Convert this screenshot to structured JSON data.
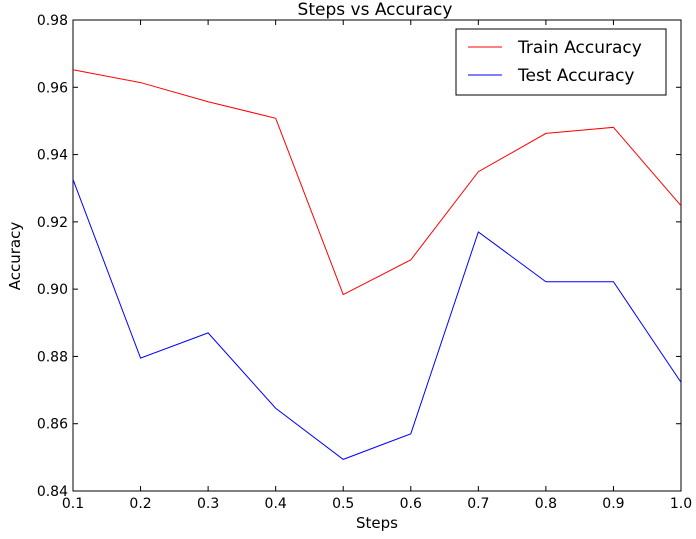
{
  "chart_data": {
    "type": "line",
    "title": "Steps vs Accuracy",
    "xlabel": "Steps",
    "ylabel": "Accuracy",
    "xlim": [
      0.1,
      1.0
    ],
    "ylim": [
      0.84,
      0.98
    ],
    "x": [
      0.1,
      0.2,
      0.3,
      0.4,
      0.5,
      0.6,
      0.7,
      0.8,
      0.9,
      1.0
    ],
    "x_ticks": [
      "0.1",
      "0.2",
      "0.3",
      "0.4",
      "0.5",
      "0.6",
      "0.7",
      "0.8",
      "0.9",
      "1.0"
    ],
    "y_ticks": [
      "0.84",
      "0.86",
      "0.88",
      "0.90",
      "0.92",
      "0.94",
      "0.96",
      "0.98"
    ],
    "grid": false,
    "legend_position": "top-right",
    "series": [
      {
        "name": "Train Accuracy",
        "color": "#ff0000",
        "values": [
          0.9652,
          0.9614,
          0.9557,
          0.9508,
          0.8984,
          0.9087,
          0.9349,
          0.9463,
          0.9481,
          0.9248
        ]
      },
      {
        "name": "Test Accuracy",
        "color": "#0000ff",
        "values": [
          0.9326,
          0.8795,
          0.887,
          0.8646,
          0.8494,
          0.857,
          0.917,
          0.9022,
          0.9022,
          0.8723
        ]
      }
    ]
  }
}
